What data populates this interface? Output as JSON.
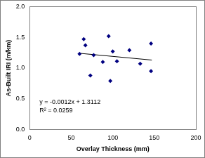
{
  "chart_data": {
    "type": "scatter",
    "xlabel": "Overlay Thickness (mm)",
    "ylabel": "As-Built IRI (m/km)",
    "xlim": [
      0,
      200
    ],
    "xticks": [
      0,
      50,
      100,
      150,
      200
    ],
    "ylim": [
      0,
      2
    ],
    "yticks": [
      {
        "value": 0,
        "label": "0.0"
      },
      {
        "value": 0.5,
        "label": "0.5"
      },
      {
        "value": 1,
        "label": "1.0"
      },
      {
        "value": 1.5,
        "label": "1.5"
      },
      {
        "value": 2,
        "label": "2.0"
      }
    ],
    "grid": false,
    "series": [
      {
        "type": "scatter",
        "marker": "diamond",
        "color": "#000080",
        "x": [
          60,
          65,
          67,
          73,
          77,
          88,
          95,
          97,
          100,
          105,
          120,
          133,
          146,
          146
        ],
        "values": [
          1.23,
          1.47,
          1.37,
          0.88,
          1.21,
          1.1,
          1.52,
          0.79,
          1.27,
          1.11,
          1.29,
          1.07,
          1.4,
          0.95
        ]
      },
      {
        "type": "line",
        "line_style": "solid",
        "color": "#000000",
        "x": [
          60,
          147
        ],
        "values": [
          1.24,
          1.13
        ]
      }
    ],
    "annotations": [
      "y = -0.0012x + 1.3112",
      "R² = 0.0259"
    ]
  }
}
